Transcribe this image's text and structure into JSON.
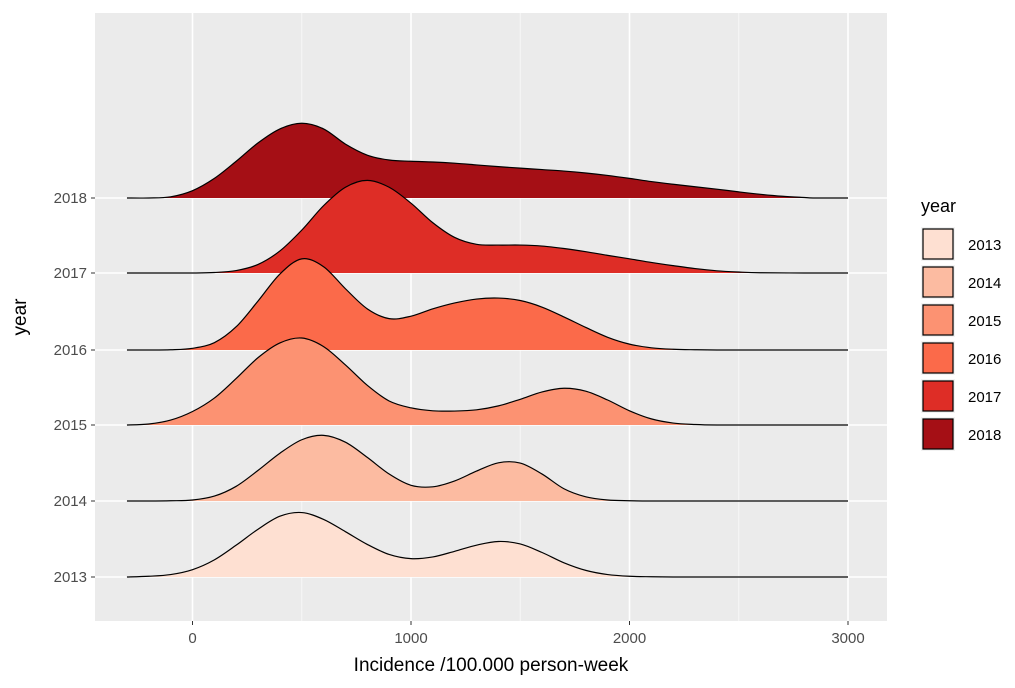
{
  "chart_data": {
    "type": "ridgeline",
    "xlabel": "Incidence /100.000 person-week",
    "ylabel": "year",
    "xlim": [
      -450,
      3100
    ],
    "x_ticks": [
      0,
      1000,
      2000,
      3000
    ],
    "x_tick_labels": [
      "0",
      "1000",
      "2000",
      "3000"
    ],
    "categories": [
      "2013",
      "2014",
      "2015",
      "2016",
      "2017",
      "2018"
    ],
    "grid": true,
    "legend": {
      "title": "year",
      "position": "right",
      "entries": [
        "2013",
        "2014",
        "2015",
        "2016",
        "2017",
        "2018"
      ]
    },
    "density_scale": 1.0,
    "series": [
      {
        "name": "2013",
        "color": "#FEE0D2",
        "x": [
          -300,
          -200,
          -100,
          0,
          100,
          200,
          300,
          400,
          500,
          600,
          700,
          800,
          900,
          1000,
          1100,
          1200,
          1300,
          1400,
          1500,
          1600,
          1700,
          1800,
          1900,
          2000,
          2100,
          2200,
          2300,
          2400,
          2600,
          2800,
          3000
        ],
        "density": [
          0.0,
          0.03,
          0.1,
          0.3,
          0.7,
          1.3,
          1.95,
          2.48,
          2.63,
          2.35,
          1.85,
          1.33,
          0.92,
          0.75,
          0.82,
          1.05,
          1.3,
          1.45,
          1.35,
          1.0,
          0.58,
          0.27,
          0.1,
          0.03,
          0.01,
          0.0,
          0.0,
          0.0,
          0.0,
          0.0,
          0.0
        ]
      },
      {
        "name": "2014",
        "color": "#FCBBA1",
        "x": [
          -300,
          -200,
          -100,
          0,
          100,
          200,
          300,
          400,
          500,
          600,
          700,
          800,
          900,
          1000,
          1100,
          1200,
          1300,
          1400,
          1500,
          1600,
          1700,
          1800,
          1900,
          2000,
          2100,
          2200,
          2300,
          2400,
          2600,
          2800,
          3000
        ],
        "density": [
          0.0,
          0.0,
          0.01,
          0.04,
          0.2,
          0.6,
          1.25,
          1.95,
          2.5,
          2.68,
          2.4,
          1.78,
          1.1,
          0.64,
          0.58,
          0.82,
          1.22,
          1.56,
          1.55,
          1.1,
          0.5,
          0.17,
          0.04,
          0.01,
          0.0,
          0.0,
          0.0,
          0.0,
          0.0,
          0.0,
          0.0
        ]
      },
      {
        "name": "2015",
        "color": "#FC9272",
        "x": [
          -300,
          -200,
          -100,
          0,
          100,
          200,
          300,
          400,
          500,
          600,
          700,
          800,
          900,
          1000,
          1100,
          1200,
          1300,
          1400,
          1500,
          1600,
          1700,
          1800,
          1900,
          2000,
          2100,
          2200,
          2300,
          2400,
          2600,
          2800,
          3000
        ],
        "density": [
          0.0,
          0.04,
          0.2,
          0.55,
          1.1,
          1.9,
          2.75,
          3.35,
          3.55,
          3.2,
          2.45,
          1.62,
          0.98,
          0.7,
          0.58,
          0.57,
          0.62,
          0.78,
          1.05,
          1.35,
          1.5,
          1.38,
          1.02,
          0.58,
          0.25,
          0.08,
          0.02,
          0.0,
          0.0,
          0.0,
          0.0
        ]
      },
      {
        "name": "2016",
        "color": "#FB6A4A",
        "x": [
          -300,
          -200,
          -100,
          0,
          100,
          200,
          300,
          400,
          500,
          600,
          700,
          800,
          900,
          1000,
          1100,
          1200,
          1300,
          1400,
          1500,
          1600,
          1700,
          1800,
          1900,
          2000,
          2100,
          2200,
          2300,
          2400,
          2600,
          2800,
          3000
        ],
        "density": [
          0.0,
          0.0,
          0.01,
          0.07,
          0.3,
          0.95,
          2.0,
          3.1,
          3.72,
          3.4,
          2.5,
          1.68,
          1.28,
          1.38,
          1.68,
          1.92,
          2.08,
          2.12,
          2.02,
          1.75,
          1.35,
          0.92,
          0.52,
          0.24,
          0.09,
          0.03,
          0.01,
          0.0,
          0.0,
          0.0,
          0.0
        ]
      },
      {
        "name": "2017",
        "color": "#DE2D26",
        "x": [
          -300,
          -200,
          -100,
          0,
          100,
          200,
          300,
          400,
          500,
          600,
          700,
          800,
          900,
          1000,
          1100,
          1200,
          1300,
          1400,
          1500,
          1600,
          1700,
          1800,
          1900,
          2000,
          2100,
          2200,
          2300,
          2400,
          2500,
          2600,
          2800,
          3000
        ],
        "density": [
          0.0,
          0.0,
          0.0,
          0.0,
          0.02,
          0.1,
          0.35,
          0.9,
          1.75,
          2.75,
          3.5,
          3.78,
          3.5,
          2.85,
          2.05,
          1.45,
          1.17,
          1.14,
          1.14,
          1.1,
          1.0,
          0.87,
          0.72,
          0.58,
          0.43,
          0.3,
          0.18,
          0.09,
          0.04,
          0.01,
          0.0,
          0.0
        ]
      },
      {
        "name": "2018",
        "color": "#A50F15",
        "x": [
          -300,
          -200,
          -100,
          0,
          100,
          200,
          300,
          400,
          500,
          600,
          700,
          800,
          900,
          1000,
          1100,
          1200,
          1300,
          1400,
          1500,
          1600,
          1700,
          1800,
          1900,
          2000,
          2100,
          2200,
          2300,
          2400,
          2500,
          2600,
          2700,
          2800,
          2850,
          3000
        ],
        "density": [
          0.0,
          0.0,
          0.05,
          0.3,
          0.8,
          1.5,
          2.25,
          2.82,
          3.05,
          2.82,
          2.2,
          1.75,
          1.55,
          1.5,
          1.47,
          1.42,
          1.35,
          1.28,
          1.22,
          1.16,
          1.1,
          1.02,
          0.92,
          0.8,
          0.67,
          0.56,
          0.46,
          0.36,
          0.25,
          0.15,
          0.07,
          0.02,
          0.0,
          0.0
        ]
      }
    ]
  }
}
